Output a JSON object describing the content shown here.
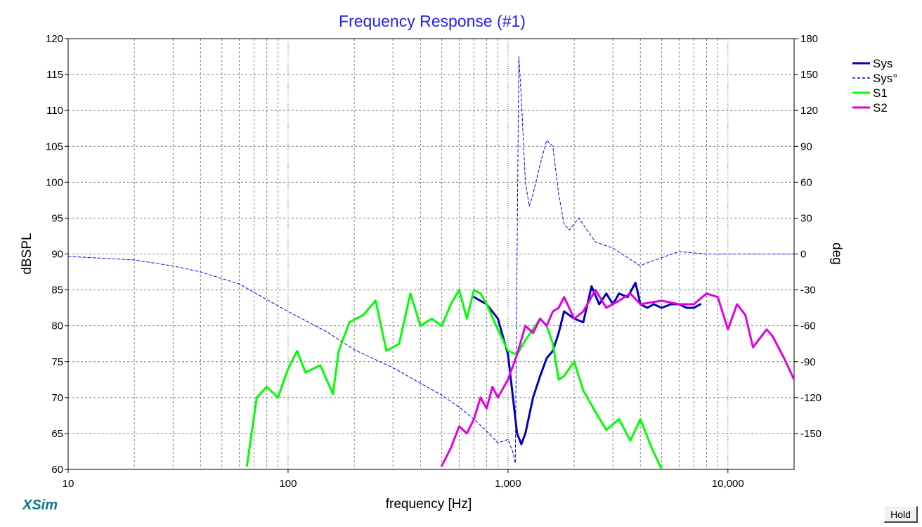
{
  "chart_data": {
    "type": "line",
    "title": "Frequency Response (#1)",
    "xlabel": "frequency [Hz]",
    "ylabel": "dBSPL",
    "ylabel_right": "deg",
    "xscale": "log",
    "xlim": [
      10,
      20000
    ],
    "ylim": [
      60,
      120
    ],
    "ylim_right": [
      -180,
      180
    ],
    "x_ticks": [
      10,
      100,
      1000,
      10000
    ],
    "x_tick_labels": [
      "10",
      "100",
      "1,000",
      "10,000"
    ],
    "y_ticks": [
      60,
      65,
      70,
      75,
      80,
      85,
      90,
      95,
      100,
      105,
      110,
      115,
      120
    ],
    "y_tick_labels": [
      "60",
      "65",
      "70",
      "75",
      "80",
      "85",
      "90",
      "95",
      "100",
      "105",
      "110",
      "115",
      "120"
    ],
    "y_right_ticks": [
      -150,
      -120,
      -90,
      -60,
      -30,
      0,
      30,
      60,
      90,
      120,
      150,
      180
    ],
    "y_right_tick_labels": [
      "-150",
      "-120",
      "-90",
      "-60",
      "-30",
      "0",
      "30",
      "60",
      "90",
      "120",
      "150",
      "180"
    ],
    "grid": true,
    "legend_position": "top-right",
    "series": [
      {
        "name": "Sys",
        "color": "#0000c0",
        "style": "solid",
        "axis": "left",
        "width": 3,
        "x": [
          700,
          800,
          900,
          1000,
          1100,
          1150,
          1200,
          1300,
          1400,
          1500,
          1600,
          1700,
          1800,
          2000,
          2200,
          2400,
          2600,
          2800,
          3000,
          3200,
          3500,
          3800,
          4000,
          4300,
          4600,
          5000,
          5500,
          6000,
          6500,
          7000,
          7500
        ],
        "y": [
          84,
          83,
          81,
          76,
          65,
          63.5,
          65,
          70,
          73,
          75.5,
          76.5,
          79,
          82,
          81,
          80.5,
          85.5,
          83,
          84.5,
          83,
          84.5,
          84,
          86,
          83,
          82.5,
          83,
          82.5,
          83,
          83,
          82.5,
          82.5,
          83
        ]
      },
      {
        "name": "Sys°",
        "color": "#0000ff",
        "style": "dashed",
        "axis": "right",
        "width": 1,
        "x": [
          10,
          20,
          30,
          40,
          60,
          80,
          100,
          150,
          200,
          300,
          400,
          500,
          600,
          700,
          800,
          900,
          1000,
          1050,
          1080,
          1100,
          1120,
          1150,
          1200,
          1250,
          1300,
          1400,
          1500,
          1600,
          1700,
          1800,
          1900,
          2100,
          2500,
          3000,
          3500,
          4000,
          4200,
          5000,
          6000,
          8000,
          10000,
          20000
        ],
        "y": [
          -2,
          -5,
          -10,
          -15,
          -25,
          -38,
          -48,
          -65,
          -80,
          -95,
          -108,
          -118,
          -128,
          -138,
          -148,
          -158,
          -155,
          -165,
          -175,
          0,
          165,
          130,
          60,
          40,
          50,
          75,
          95,
          90,
          50,
          25,
          20,
          30,
          10,
          5,
          -3,
          -10,
          -8,
          -3,
          2,
          0,
          0,
          0
        ]
      },
      {
        "name": "S1",
        "color": "#00ff00",
        "style": "solid",
        "axis": "left",
        "width": 3,
        "x": [
          65,
          72,
          80,
          90,
          100,
          110,
          120,
          140,
          160,
          170,
          190,
          220,
          250,
          280,
          320,
          360,
          400,
          450,
          500,
          550,
          600,
          650,
          700,
          750,
          800,
          900,
          1000,
          1100,
          1200,
          1300,
          1400,
          1500,
          1600,
          1700,
          1800,
          2000,
          2200,
          2500,
          2800,
          3200,
          3600,
          4000,
          4500,
          5000
        ],
        "y": [
          60.5,
          70,
          71.5,
          70,
          74,
          76.5,
          73.5,
          74.5,
          70.5,
          76.5,
          80.5,
          81.5,
          83.5,
          76.5,
          77.5,
          84.5,
          80,
          81,
          80,
          83,
          85,
          81,
          85,
          84.5,
          83,
          79.5,
          76.5,
          76,
          78,
          79.5,
          81,
          80,
          77.5,
          72.5,
          73,
          75,
          71,
          68,
          65.5,
          67,
          64,
          67,
          63,
          60
        ]
      },
      {
        "name": "S2",
        "color": "#e000e0",
        "style": "solid",
        "axis": "left",
        "width": 3,
        "x": [
          500,
          550,
          600,
          650,
          700,
          750,
          800,
          850,
          900,
          1000,
          1100,
          1200,
          1300,
          1400,
          1500,
          1600,
          1700,
          1800,
          2000,
          2200,
          2500,
          2800,
          3200,
          3600,
          4000,
          5000,
          6000,
          7000,
          8000,
          9000,
          10000,
          11000,
          12000,
          13000,
          15000,
          16000,
          18000,
          20000
        ],
        "y": [
          60.5,
          63,
          66,
          65,
          67,
          70,
          68.5,
          71.5,
          70,
          72.5,
          76,
          80,
          79,
          81,
          80,
          82,
          82.5,
          84,
          81,
          82,
          85,
          82.5,
          83.5,
          84.5,
          83,
          83.5,
          83,
          83,
          84.5,
          84,
          79.5,
          83,
          81.5,
          77,
          79.5,
          78.5,
          75.5,
          72.5
        ]
      }
    ]
  },
  "branding": {
    "logo": "XSim"
  },
  "controls": {
    "hold_label": "Hold"
  }
}
